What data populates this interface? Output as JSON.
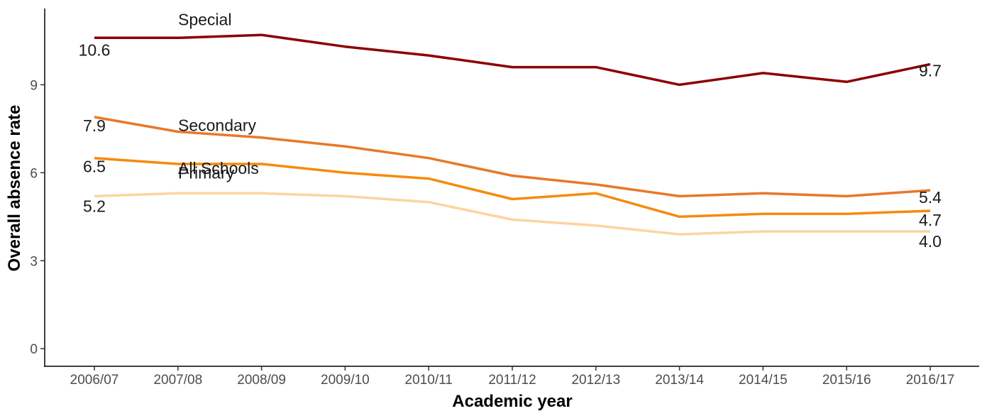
{
  "chart_data": {
    "type": "line",
    "xlabel": "Academic year",
    "ylabel": "Overall absence rate",
    "categories": [
      "2006/07",
      "2007/08",
      "2008/09",
      "2009/10",
      "2010/11",
      "2011/12",
      "2012/13",
      "2013/14",
      "2014/15",
      "2015/16",
      "2016/17"
    ],
    "ylim": [
      -0.6,
      11.6
    ],
    "yticks": [
      0,
      3,
      6,
      9
    ],
    "grid": false,
    "legend": "none",
    "series": [
      {
        "name": "Special",
        "color": "#8b0000",
        "values": [
          10.6,
          10.6,
          10.7,
          10.3,
          10.0,
          9.6,
          9.6,
          9.0,
          9.4,
          9.1,
          9.7
        ],
        "start_label": "10.6",
        "end_label": "9.7"
      },
      {
        "name": "Secondary",
        "color": "#e8782a",
        "values": [
          7.9,
          7.4,
          7.2,
          6.9,
          6.5,
          5.9,
          5.6,
          5.2,
          5.3,
          5.2,
          5.4
        ],
        "start_label": "7.9",
        "end_label": "5.4"
      },
      {
        "name": "All Schools",
        "color": "#f58b0c",
        "values": [
          6.5,
          6.3,
          6.3,
          6.0,
          5.8,
          5.1,
          5.3,
          4.5,
          4.6,
          4.6,
          4.7
        ],
        "start_label": "6.5",
        "end_label": "4.7"
      },
      {
        "name": "Primary",
        "color": "#fdd49e",
        "values": [
          5.2,
          5.3,
          5.3,
          5.2,
          5.0,
          4.4,
          4.2,
          3.9,
          4.0,
          4.0,
          4.0
        ],
        "start_label": "5.2",
        "end_label": "4.0"
      }
    ]
  }
}
